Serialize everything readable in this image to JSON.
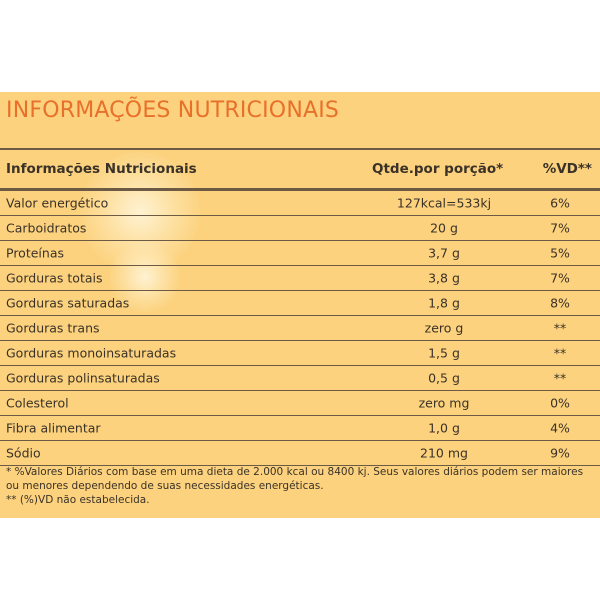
{
  "title": "INFORMAÇÕES NUTRICIONAIS",
  "table": {
    "headers": {
      "name": "Informações Nutricionais",
      "qty": "Qtde.por porção*",
      "vd": "%VD**"
    },
    "rows": [
      {
        "name": "Valor energético",
        "qty": "127kcal=533kj",
        "vd": "6%"
      },
      {
        "name": "Carboidratos",
        "qty": "20 g",
        "vd": "7%"
      },
      {
        "name": "Proteínas",
        "qty": "3,7 g",
        "vd": "5%"
      },
      {
        "name": "Gorduras totais",
        "qty": "3,8 g",
        "vd": "7%"
      },
      {
        "name": "Gorduras saturadas",
        "qty": "1,8 g",
        "vd": "8%"
      },
      {
        "name": "Gorduras trans",
        "qty": "zero g",
        "vd": "**"
      },
      {
        "name": "Gorduras monoinsaturadas",
        "qty": "1,5 g",
        "vd": "**"
      },
      {
        "name": "Gorduras polinsaturadas",
        "qty": "0,5 g",
        "vd": "**"
      },
      {
        "name": "Colesterol",
        "qty": "zero mg",
        "vd": "0%"
      },
      {
        "name": "Fibra alimentar",
        "qty": "1,0 g",
        "vd": "4%"
      },
      {
        "name": "Sódio",
        "qty": "210 mg",
        "vd": "9%"
      }
    ]
  },
  "footnotes": {
    "line1": "* %Valores Diários com base em uma dieta de 2.000 kcal ou 8400 kj. Seus valores diários podem ser maiores ou menores dependendo de suas necessidades energéticas.",
    "line2": "** (%)VD não estabelecida."
  }
}
